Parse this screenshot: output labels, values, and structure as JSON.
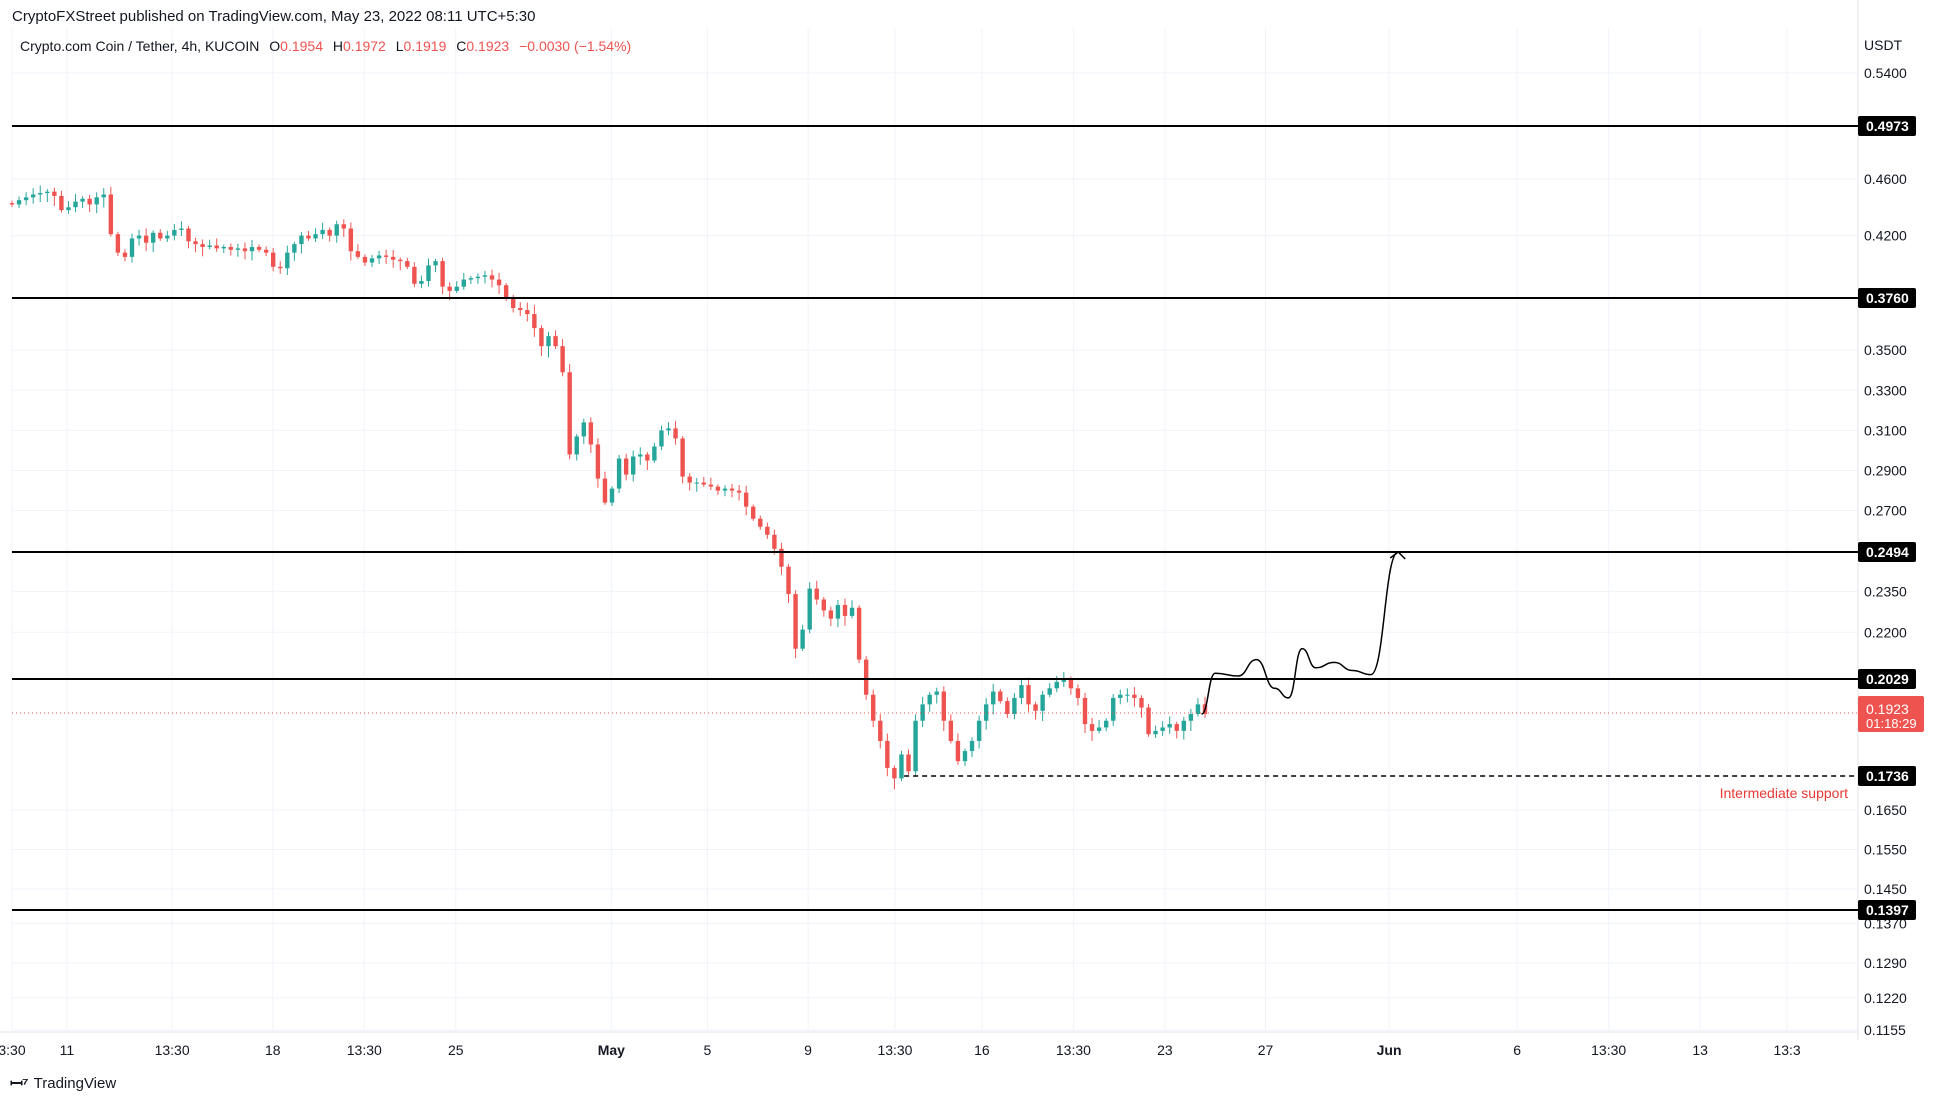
{
  "header": {
    "published": "CryptoFXStreet published on TradingView.com, May 23, 2022 08:11 UTC+5:30",
    "symbol": "Crypto.com Coin / Tether, 4h, KUCOIN",
    "o_label": "O",
    "o_value": "0.1954",
    "h_label": "H",
    "h_value": "0.1972",
    "l_label": "L",
    "l_value": "0.1919",
    "c_label": "C",
    "c_value": "0.1923",
    "change": "−0.0030 (−1.54%)"
  },
  "footer": {
    "brand": "TradingView",
    "logo": "tradingview-logo"
  },
  "colors": {
    "up": "#26a69a",
    "down": "#ef5350",
    "level": "#000000",
    "price": "#ef5350",
    "grid": "#f0f3fa"
  },
  "chart_data": {
    "type": "candlestick",
    "currency_label": "USDT",
    "y_ticks": [
      "0.5400",
      "0.4600",
      "0.4200",
      "0.3500",
      "0.3300",
      "0.3100",
      "0.2900",
      "0.2700",
      "0.2350",
      "0.2200",
      "0.1650",
      "0.1550",
      "0.1450",
      "0.1370",
      "0.1290",
      "0.1220",
      "0.1155"
    ],
    "x_ticks": [
      {
        "label": "3:30",
        "t": 0
      },
      {
        "label": "11",
        "t": 0.6
      },
      {
        "label": "13:30",
        "t": 1.75
      },
      {
        "label": "18",
        "t": 2.85
      },
      {
        "label": "13:30",
        "t": 3.85
      },
      {
        "label": "25",
        "t": 4.85
      },
      {
        "label": "May",
        "t": 6.55
      },
      {
        "label": "5",
        "t": 7.6
      },
      {
        "label": "9",
        "t": 8.7
      },
      {
        "label": "13:30",
        "t": 9.65
      },
      {
        "label": "16",
        "t": 10.6
      },
      {
        "label": "13:30",
        "t": 11.6
      },
      {
        "label": "23",
        "t": 12.6
      },
      {
        "label": "27",
        "t": 13.7
      },
      {
        "label": "Jun",
        "t": 15.05
      },
      {
        "label": "6",
        "t": 16.45
      },
      {
        "label": "13:30",
        "t": 17.45
      },
      {
        "label": "13",
        "t": 18.45
      },
      {
        "label": "13:3",
        "t": 19.4
      }
    ],
    "levels": [
      {
        "label": "0.4973",
        "value": 0.4973
      },
      {
        "label": "0.3760",
        "value": 0.376
      },
      {
        "label": "0.2494",
        "value": 0.2494
      },
      {
        "label": "0.2029",
        "value": 0.2029
      },
      {
        "label": "0.1397",
        "value": 0.1397
      }
    ],
    "support": {
      "label": "0.1736",
      "value": 0.1736,
      "annotation": "Intermediate support",
      "t_start": 9.75
    },
    "last_price": {
      "label": "0.1923",
      "value": 0.1923,
      "countdown": "01:18:29"
    },
    "candles_close": [
      0.442,
      0.445,
      0.447,
      0.449,
      0.45,
      0.451,
      0.448,
      0.438,
      0.44,
      0.444,
      0.446,
      0.442,
      0.447,
      0.449,
      0.421,
      0.408,
      0.405,
      0.418,
      0.42,
      0.415,
      0.422,
      0.418,
      0.42,
      0.424,
      0.425,
      0.416,
      0.414,
      0.412,
      0.413,
      0.411,
      0.412,
      0.41,
      0.411,
      0.409,
      0.412,
      0.41,
      0.408,
      0.398,
      0.397,
      0.408,
      0.414,
      0.42,
      0.418,
      0.421,
      0.424,
      0.42,
      0.428,
      0.425,
      0.409,
      0.405,
      0.401,
      0.404,
      0.406,
      0.405,
      0.403,
      0.402,
      0.398,
      0.386,
      0.388,
      0.399,
      0.402,
      0.384,
      0.381,
      0.384,
      0.389,
      0.39,
      0.391,
      0.392,
      0.389,
      0.385,
      0.376,
      0.371,
      0.37,
      0.368,
      0.361,
      0.352,
      0.357,
      0.352,
      0.339,
      0.298,
      0.307,
      0.314,
      0.303,
      0.286,
      0.274,
      0.281,
      0.296,
      0.288,
      0.297,
      0.298,
      0.295,
      0.302,
      0.31,
      0.311,
      0.306,
      0.287,
      0.284,
      0.284,
      0.283,
      0.282,
      0.28,
      0.281,
      0.28,
      0.279,
      0.272,
      0.266,
      0.262,
      0.258,
      0.251,
      0.244,
      0.234,
      0.214,
      0.221,
      0.236,
      0.232,
      0.228,
      0.225,
      0.23,
      0.226,
      0.229,
      0.21,
      0.198,
      0.19,
      0.184,
      0.176,
      0.173,
      0.18,
      0.175,
      0.19,
      0.195,
      0.198,
      0.199,
      0.19,
      0.184,
      0.178,
      0.181,
      0.184,
      0.19,
      0.195,
      0.199,
      0.196,
      0.192,
      0.197,
      0.201,
      0.195,
      0.193,
      0.198,
      0.2,
      0.202,
      0.203,
      0.2,
      0.197,
      0.189,
      0.187,
      0.188,
      0.19,
      0.197,
      0.198,
      0.198,
      0.197,
      0.194,
      0.186,
      0.187,
      0.188,
      0.189,
      0.187,
      0.19,
      0.192,
      0.195,
      0.192
    ],
    "projection_path": [
      [
        13.0,
        0.192
      ],
      [
        13.15,
        0.205
      ],
      [
        13.4,
        0.204
      ],
      [
        13.6,
        0.21
      ],
      [
        13.8,
        0.2
      ],
      [
        13.95,
        0.197
      ],
      [
        14.1,
        0.214
      ],
      [
        14.25,
        0.207
      ],
      [
        14.45,
        0.209
      ],
      [
        14.65,
        0.206
      ],
      [
        14.85,
        0.2045
      ],
      [
        15.15,
        0.2494
      ]
    ]
  }
}
